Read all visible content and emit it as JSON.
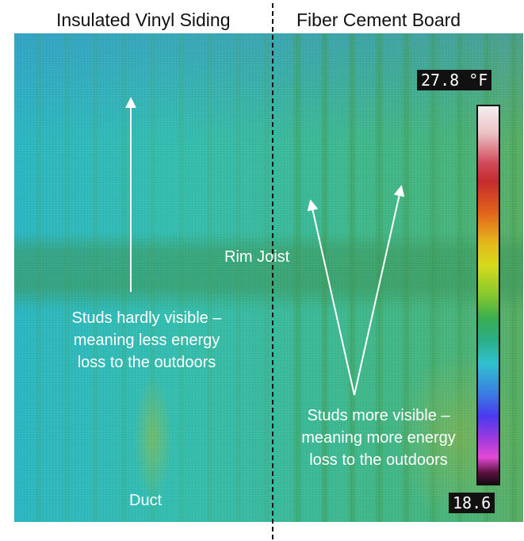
{
  "headings": {
    "left": "Insulated Vinyl Siding",
    "right": "Fiber Cement Board"
  },
  "annotations": {
    "rim_joist": "Rim Joist",
    "left_line1": "Studs hardly visible –",
    "left_line2": "meaning less energy",
    "left_line3": "loss to the outdoors",
    "right_line1": "Studs more visible –",
    "right_line2": "meaning more energy",
    "right_line3": "loss to the outdoors",
    "duct": "Duct"
  },
  "scale": {
    "max_label": "27.8 °F",
    "min_label": "18.6",
    "max_value": 27.8,
    "min_value": 18.6,
    "unit": "°F"
  },
  "colors": {
    "annotation_text": "#ffffff",
    "heading_text": "#111111",
    "thermal_base": "#38ba9e"
  }
}
